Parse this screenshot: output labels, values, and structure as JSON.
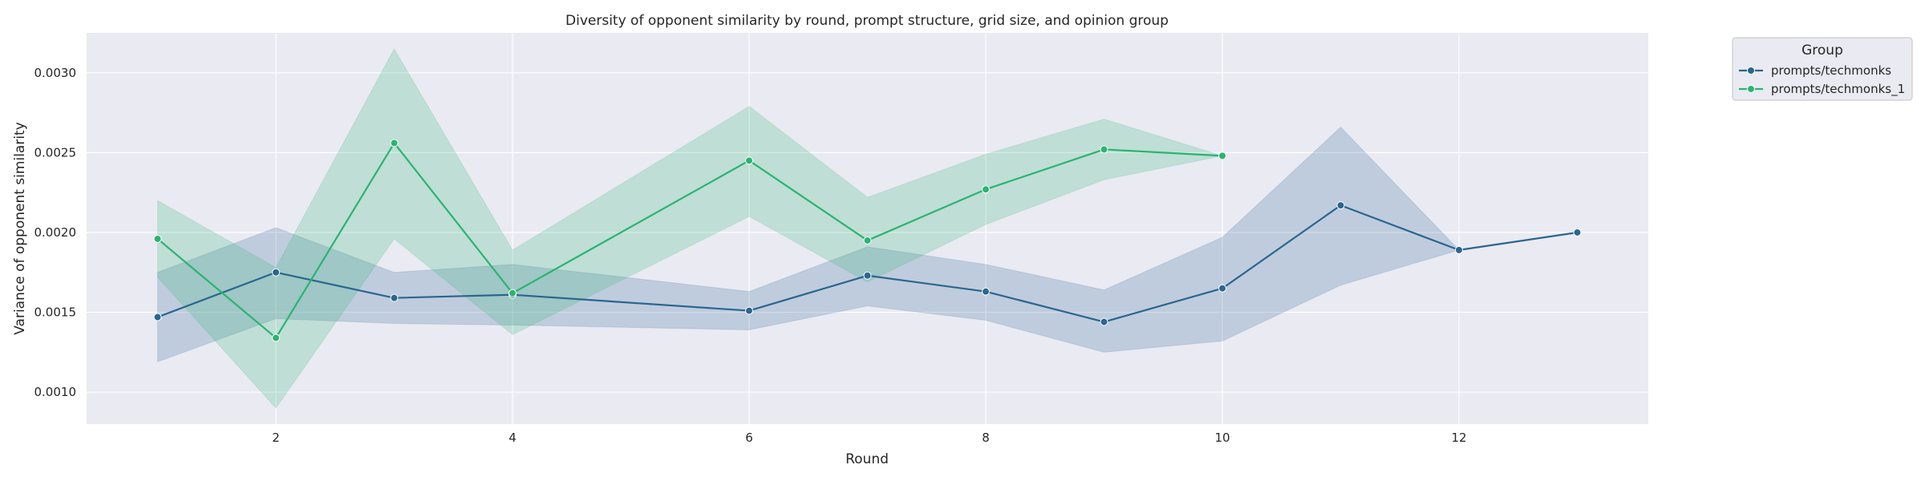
{
  "chart_data": {
    "type": "line",
    "title": "Diversity of opponent similarity by round, prompt structure, grid size, and opinion group",
    "xlabel": "Round",
    "ylabel": "Variance of opponent similarity",
    "xlim": [
      0.4,
      13.6
    ],
    "ylim": [
      0.0008,
      0.00325
    ],
    "x_ticks": [
      2,
      4,
      6,
      8,
      10,
      12
    ],
    "y_ticks": [
      0.001,
      0.0015,
      0.002,
      0.0025,
      0.003
    ],
    "y_tick_labels": [
      "0.0010",
      "0.0015",
      "0.0020",
      "0.0025",
      "0.0030"
    ],
    "grid": true,
    "background": "#eaeaf2",
    "legend": {
      "title": "Group",
      "placement": "outside-top-right"
    },
    "series": [
      {
        "name": "prompts/techmonks",
        "color": "#2a6690",
        "x": [
          1,
          2,
          3,
          4,
          6,
          7,
          8,
          9,
          10,
          11,
          12,
          13
        ],
        "y": [
          0.00147,
          0.00175,
          0.00159,
          0.00161,
          0.00151,
          0.00173,
          0.00163,
          0.00144,
          0.00165,
          0.00217,
          0.00189,
          0.002
        ],
        "ci_low": [
          0.00119,
          0.00146,
          0.00143,
          0.00142,
          0.00139,
          0.00154,
          0.00145,
          0.00125,
          0.00132,
          0.00167,
          0.00189,
          0.002
        ],
        "ci_high": [
          0.00175,
          0.00203,
          0.00175,
          0.0018,
          0.00163,
          0.00191,
          0.0018,
          0.00164,
          0.00197,
          0.00266,
          0.00189,
          0.002
        ]
      },
      {
        "name": "prompts/techmonks_1",
        "color": "#2ab472",
        "x": [
          1,
          2,
          3,
          4,
          6,
          7,
          8,
          9,
          10
        ],
        "y": [
          0.00196,
          0.00134,
          0.00256,
          0.00162,
          0.00245,
          0.00195,
          0.00227,
          0.00252,
          0.00248
        ],
        "ci_low": [
          0.00172,
          0.0009,
          0.00196,
          0.00136,
          0.0021,
          0.00169,
          0.00205,
          0.00233,
          0.00248
        ],
        "ci_high": [
          0.0022,
          0.00178,
          0.00315,
          0.00189,
          0.00279,
          0.00222,
          0.00249,
          0.00271,
          0.00248
        ]
      }
    ]
  }
}
